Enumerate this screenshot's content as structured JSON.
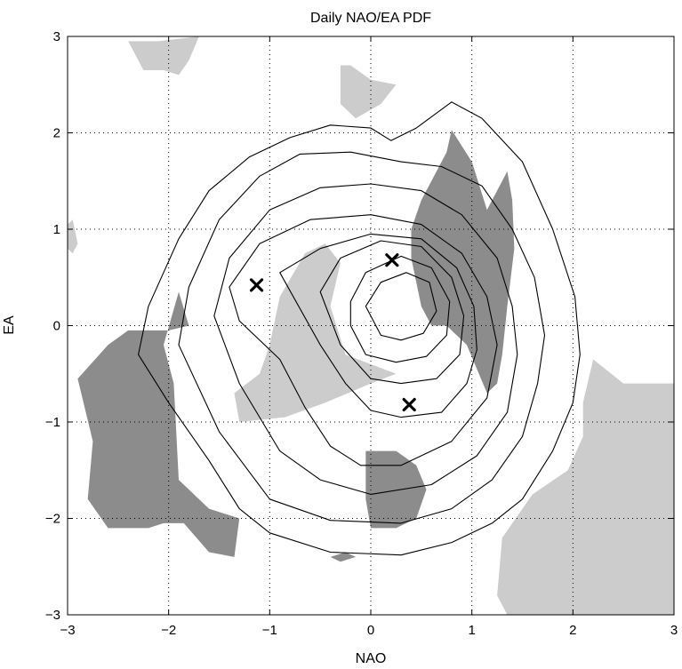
{
  "chart_data": {
    "type": "contour",
    "title": "Daily NAO/EA PDF",
    "xlabel": "NAO",
    "ylabel": "EA",
    "xlim": [
      -3,
      3
    ],
    "ylim": [
      -3,
      3
    ],
    "x_ticks": [
      -3,
      -2,
      -1,
      0,
      1,
      2,
      3
    ],
    "y_ticks": [
      -3,
      -2,
      -1,
      0,
      1,
      2,
      3
    ],
    "x_tick_labels": [
      "−3",
      "−2",
      "−1",
      "0",
      "1",
      "2",
      "3"
    ],
    "y_tick_labels": [
      "−3",
      "−2",
      "−1",
      "0",
      "1",
      "2",
      "3"
    ],
    "grid": "dotted",
    "colors": {
      "dark_shade": "#8c8c8c",
      "light_shade": "#cccccc",
      "contour_line": "#000000",
      "marker": "#000000"
    },
    "markers": [
      {
        "symbol": "x",
        "x": -1.13,
        "y": 0.42
      },
      {
        "symbol": "x",
        "x": 0.21,
        "y": 0.68
      },
      {
        "symbol": "x",
        "x": 0.38,
        "y": -0.82
      }
    ],
    "contours": [
      {
        "level": 1,
        "points": [
          [
            -2.3,
            -0.3
          ],
          [
            -2.2,
            0.2
          ],
          [
            -1.9,
            0.9
          ],
          [
            -1.6,
            1.4
          ],
          [
            -1.2,
            1.75
          ],
          [
            -0.8,
            1.95
          ],
          [
            -0.4,
            2.08
          ],
          [
            0.0,
            2.05
          ],
          [
            0.2,
            1.92
          ],
          [
            0.45,
            2.05
          ],
          [
            0.8,
            2.32
          ],
          [
            1.1,
            2.15
          ],
          [
            1.5,
            1.7
          ],
          [
            1.8,
            1.0
          ],
          [
            2.02,
            0.3
          ],
          [
            2.07,
            -0.3
          ],
          [
            2.0,
            -0.8
          ],
          [
            1.8,
            -1.3
          ],
          [
            1.5,
            -1.8
          ],
          [
            1.2,
            -2.05
          ],
          [
            0.8,
            -2.25
          ],
          [
            0.3,
            -2.38
          ],
          [
            -0.4,
            -2.35
          ],
          [
            -1.0,
            -2.15
          ],
          [
            -1.3,
            -1.9
          ],
          [
            -1.6,
            -1.4
          ],
          [
            -2.0,
            -0.8
          ],
          [
            -2.3,
            -0.3
          ]
        ]
      },
      {
        "level": 2,
        "points": [
          [
            -1.9,
            -0.2
          ],
          [
            -1.8,
            0.4
          ],
          [
            -1.5,
            1.1
          ],
          [
            -1.1,
            1.55
          ],
          [
            -0.7,
            1.78
          ],
          [
            -0.2,
            1.8
          ],
          [
            0.3,
            1.7
          ],
          [
            0.7,
            1.65
          ],
          [
            1.1,
            1.45
          ],
          [
            1.4,
            1.0
          ],
          [
            1.62,
            0.5
          ],
          [
            1.72,
            -0.1
          ],
          [
            1.65,
            -0.6
          ],
          [
            1.5,
            -1.15
          ],
          [
            1.2,
            -1.6
          ],
          [
            0.8,
            -1.9
          ],
          [
            0.3,
            -2.05
          ],
          [
            -0.4,
            -2.02
          ],
          [
            -1.0,
            -1.8
          ],
          [
            -1.5,
            -1.1
          ],
          [
            -1.9,
            -0.2
          ]
        ]
      },
      {
        "level": 3,
        "points": [
          [
            -1.55,
            0.1
          ],
          [
            -1.4,
            0.7
          ],
          [
            -1.0,
            1.2
          ],
          [
            -0.5,
            1.43
          ],
          [
            0.0,
            1.47
          ],
          [
            0.5,
            1.4
          ],
          [
            0.9,
            1.15
          ],
          [
            1.25,
            0.7
          ],
          [
            1.4,
            0.2
          ],
          [
            1.45,
            -0.3
          ],
          [
            1.35,
            -0.9
          ],
          [
            1.05,
            -1.35
          ],
          [
            0.6,
            -1.65
          ],
          [
            0.0,
            -1.75
          ],
          [
            -0.5,
            -1.6
          ],
          [
            -0.9,
            -1.3
          ],
          [
            -1.3,
            -0.6
          ],
          [
            -1.55,
            0.1
          ]
        ]
      },
      {
        "level": 4,
        "points": [
          [
            -1.4,
            0.4
          ],
          [
            -1.1,
            0.85
          ],
          [
            -0.6,
            1.1
          ],
          [
            0.0,
            1.15
          ],
          [
            0.5,
            1.05
          ],
          [
            0.9,
            0.75
          ],
          [
            1.15,
            0.3
          ],
          [
            1.25,
            -0.2
          ],
          [
            1.15,
            -0.75
          ],
          [
            0.8,
            -1.2
          ],
          [
            0.3,
            -1.45
          ],
          [
            -0.1,
            -1.45
          ],
          [
            -0.4,
            -1.25
          ],
          [
            -0.65,
            -0.85
          ],
          [
            -0.9,
            -0.35
          ],
          [
            -1.3,
            0.05
          ],
          [
            -1.4,
            0.4
          ]
        ]
      },
      {
        "level": 5,
        "points": [
          [
            -0.9,
            0.55
          ],
          [
            -0.5,
            0.8
          ],
          [
            0.0,
            0.95
          ],
          [
            0.5,
            0.9
          ],
          [
            0.85,
            0.6
          ],
          [
            1.02,
            0.2
          ],
          [
            1.05,
            -0.25
          ],
          [
            0.95,
            -0.6
          ],
          [
            0.7,
            -0.9
          ],
          [
            0.3,
            -0.95
          ],
          [
            0.0,
            -0.88
          ],
          [
            -0.25,
            -0.6
          ],
          [
            -0.5,
            -0.2
          ],
          [
            -0.9,
            0.55
          ]
        ]
      },
      {
        "level": 6,
        "points": [
          [
            -0.5,
            0.35
          ],
          [
            -0.3,
            0.7
          ],
          [
            0.1,
            0.88
          ],
          [
            0.5,
            0.82
          ],
          [
            0.8,
            0.5
          ],
          [
            0.92,
            0.1
          ],
          [
            0.88,
            -0.3
          ],
          [
            0.65,
            -0.55
          ],
          [
            0.3,
            -0.6
          ],
          [
            0.0,
            -0.55
          ],
          [
            -0.3,
            -0.2
          ],
          [
            -0.5,
            0.35
          ]
        ]
      },
      {
        "level": 7,
        "points": [
          [
            -0.2,
            0.25
          ],
          [
            -0.05,
            0.55
          ],
          [
            0.3,
            0.72
          ],
          [
            0.6,
            0.6
          ],
          [
            0.78,
            0.25
          ],
          [
            0.75,
            -0.1
          ],
          [
            0.55,
            -0.32
          ],
          [
            0.25,
            -0.38
          ],
          [
            -0.05,
            -0.3
          ],
          [
            -0.2,
            0.0
          ],
          [
            -0.2,
            0.25
          ]
        ]
      },
      {
        "level": 8,
        "points": [
          [
            -0.05,
            0.2
          ],
          [
            0.1,
            0.45
          ],
          [
            0.35,
            0.55
          ],
          [
            0.58,
            0.45
          ],
          [
            0.65,
            0.15
          ],
          [
            0.52,
            -0.08
          ],
          [
            0.3,
            -0.15
          ],
          [
            0.1,
            -0.1
          ],
          [
            -0.05,
            0.2
          ]
        ]
      }
    ],
    "shaded_regions": [
      {
        "shade": "dark",
        "points": [
          [
            0.8,
            2.03
          ],
          [
            1.0,
            1.7
          ],
          [
            1.15,
            1.2
          ],
          [
            1.35,
            1.6
          ],
          [
            1.4,
            1.3
          ],
          [
            1.42,
            0.8
          ],
          [
            1.35,
            0.2
          ],
          [
            1.3,
            -0.3
          ],
          [
            1.25,
            -0.6
          ],
          [
            1.15,
            -0.7
          ],
          [
            1.05,
            -0.45
          ],
          [
            0.95,
            -0.2
          ],
          [
            0.75,
            0.0
          ],
          [
            0.6,
            0.0
          ],
          [
            0.5,
            0.2
          ],
          [
            0.4,
            0.7
          ],
          [
            0.4,
            1.0
          ],
          [
            0.5,
            1.3
          ],
          [
            0.6,
            1.5
          ],
          [
            0.75,
            1.8
          ],
          [
            0.8,
            2.03
          ]
        ]
      },
      {
        "shade": "dark",
        "points": [
          [
            -2.9,
            -0.55
          ],
          [
            -2.6,
            -0.2
          ],
          [
            -2.4,
            -0.05
          ],
          [
            -2.0,
            -0.05
          ],
          [
            -1.8,
            0.0
          ],
          [
            -1.9,
            0.35
          ],
          [
            -2.05,
            -0.2
          ],
          [
            -1.95,
            -0.6
          ],
          [
            -1.9,
            -1.6
          ],
          [
            -1.6,
            -1.9
          ],
          [
            -1.3,
            -2.0
          ],
          [
            -1.35,
            -2.4
          ],
          [
            -1.6,
            -2.35
          ],
          [
            -1.85,
            -2.05
          ],
          [
            -2.05,
            -2.05
          ],
          [
            -2.2,
            -2.1
          ],
          [
            -2.6,
            -2.1
          ],
          [
            -2.8,
            -1.8
          ],
          [
            -2.75,
            -1.2
          ],
          [
            -2.9,
            -0.55
          ]
        ]
      },
      {
        "shade": "dark",
        "points": [
          [
            -0.05,
            -1.3
          ],
          [
            0.25,
            -1.3
          ],
          [
            0.45,
            -1.45
          ],
          [
            0.55,
            -1.7
          ],
          [
            0.45,
            -2.0
          ],
          [
            0.25,
            -2.1
          ],
          [
            0.0,
            -2.1
          ],
          [
            -0.05,
            -1.8
          ],
          [
            -0.05,
            -1.3
          ]
        ]
      },
      {
        "shade": "dark",
        "points": [
          [
            -0.4,
            -2.4
          ],
          [
            -0.25,
            -2.35
          ],
          [
            -0.15,
            -2.4
          ],
          [
            -0.3,
            -2.45
          ],
          [
            -0.4,
            -2.4
          ]
        ]
      },
      {
        "shade": "light",
        "points": [
          [
            -0.65,
            0.75
          ],
          [
            -0.45,
            0.85
          ],
          [
            -0.3,
            0.65
          ],
          [
            -0.4,
            0.2
          ],
          [
            -0.25,
            -0.3
          ],
          [
            0.0,
            -0.4
          ],
          [
            0.25,
            -0.5
          ],
          [
            0.0,
            -0.6
          ],
          [
            -0.45,
            -0.8
          ],
          [
            -0.85,
            -0.95
          ],
          [
            -1.3,
            -1.0
          ],
          [
            -1.35,
            -0.7
          ],
          [
            -1.1,
            -0.5
          ],
          [
            -1.0,
            -0.2
          ],
          [
            -0.9,
            0.3
          ],
          [
            -0.65,
            0.75
          ]
        ]
      },
      {
        "shade": "light",
        "points": [
          [
            -2.1,
            2.95
          ],
          [
            -1.7,
            3.0
          ],
          [
            -1.8,
            2.75
          ],
          [
            -1.9,
            2.6
          ],
          [
            -2.05,
            2.65
          ],
          [
            -2.25,
            2.65
          ],
          [
            -2.4,
            2.95
          ],
          [
            -2.1,
            2.95
          ]
        ]
      },
      {
        "shade": "light",
        "points": [
          [
            -0.3,
            2.7
          ],
          [
            -0.2,
            2.7
          ],
          [
            0.0,
            2.55
          ],
          [
            0.25,
            2.5
          ],
          [
            0.1,
            2.3
          ],
          [
            -0.15,
            2.15
          ],
          [
            -0.3,
            2.3
          ],
          [
            -0.3,
            2.7
          ]
        ]
      },
      {
        "shade": "light",
        "points": [
          [
            -3.0,
            1.05
          ],
          [
            -2.95,
            1.1
          ],
          [
            -2.9,
            0.85
          ],
          [
            -2.95,
            0.75
          ],
          [
            -3.0,
            0.8
          ],
          [
            -3.0,
            1.05
          ]
        ]
      },
      {
        "shade": "light",
        "points": [
          [
            2.2,
            -0.35
          ],
          [
            2.5,
            -0.6
          ],
          [
            2.95,
            -0.6
          ],
          [
            3.0,
            -0.6
          ],
          [
            3.0,
            -3.0
          ],
          [
            1.35,
            -3.0
          ],
          [
            1.25,
            -2.8
          ],
          [
            1.3,
            -2.2
          ],
          [
            1.6,
            -1.75
          ],
          [
            1.95,
            -1.5
          ],
          [
            2.1,
            -1.15
          ],
          [
            2.1,
            -0.8
          ],
          [
            2.2,
            -0.35
          ]
        ]
      }
    ]
  }
}
